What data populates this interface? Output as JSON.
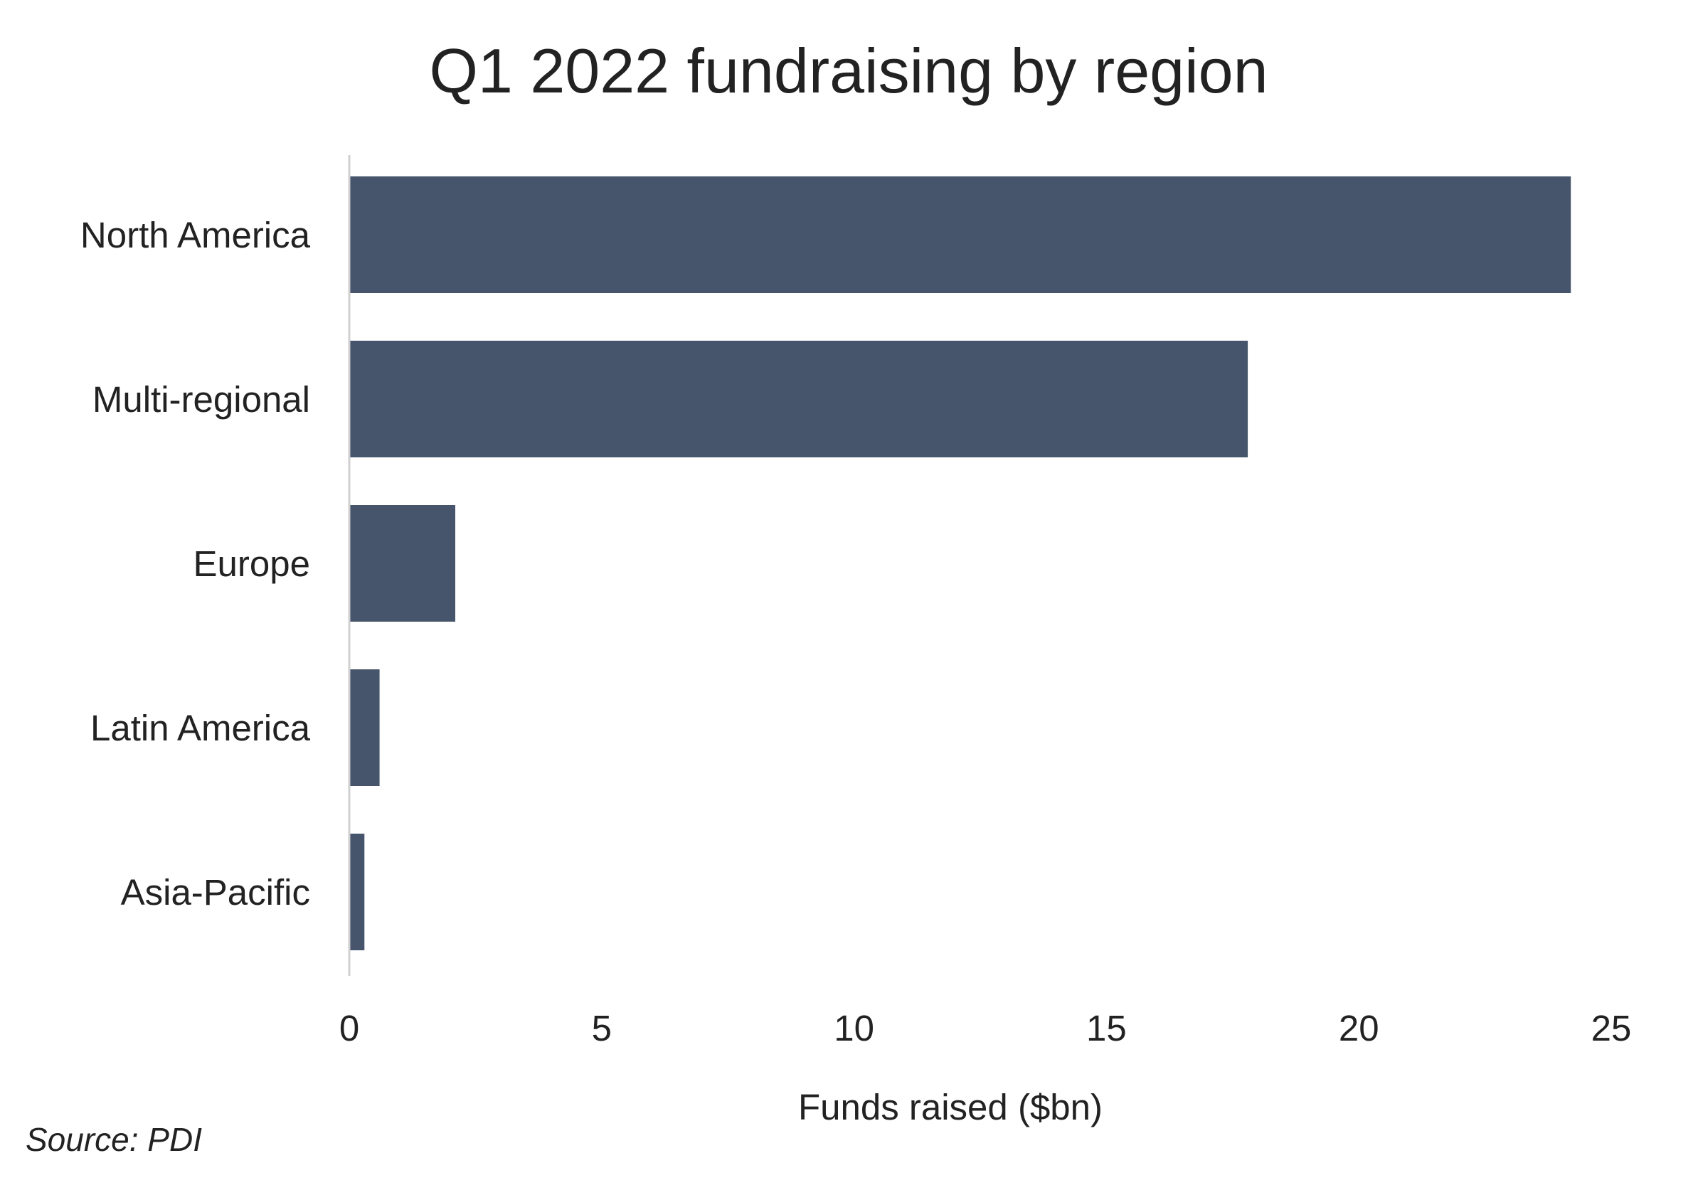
{
  "chart_data": {
    "type": "bar",
    "orientation": "horizontal",
    "title": "Q1 2022 fundraising by region",
    "xlabel": "Funds raised ($bn)",
    "ylabel": "",
    "categories": [
      "North America",
      "Multi-regional",
      "Europe",
      "Latin America",
      "Asia-Pacific"
    ],
    "values": [
      24.2,
      17.8,
      2.1,
      0.6,
      0.3
    ],
    "xlim": [
      0,
      25
    ],
    "xticks": [
      "0",
      "5",
      "10",
      "15",
      "20",
      "25"
    ],
    "grid": false,
    "legend": "none",
    "bar_color": "#46556b",
    "axis_color": "#d0d0d0"
  },
  "footer": {
    "source": "Source: PDI"
  }
}
